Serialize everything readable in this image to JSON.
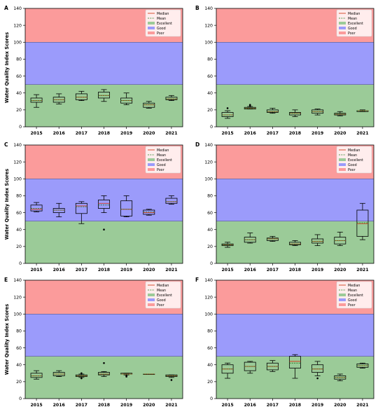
{
  "figure": {
    "legend_labels": [
      "Median",
      "Mean",
      "Excellent",
      "Good",
      "Poor"
    ],
    "colors": {
      "excellent": "#9bcb98",
      "good": "#9b9bfb",
      "poor": "#fb9b9b",
      "box_edge": "#000000",
      "median": "#d04020",
      "mean": "#208020",
      "frame": "#000000"
    }
  },
  "chart_data": [
    {
      "type": "box",
      "panel_label": "A",
      "ylabel": "Water Quality Index Scores",
      "ylim": [
        0,
        140
      ],
      "yticks": [
        0,
        20,
        40,
        60,
        80,
        100,
        120,
        140
      ],
      "bands": [
        {
          "name": "Excellent",
          "from": 0,
          "to": 50
        },
        {
          "name": "Good",
          "from": 50,
          "to": 100
        },
        {
          "name": "Poor",
          "from": 100,
          "to": 140
        }
      ],
      "legend": "top-right",
      "categories": [
        "2015",
        "2016",
        "2017",
        "2018",
        "2019",
        "2020",
        "2021"
      ],
      "boxes": [
        {
          "whislo": 23,
          "q1": 29,
          "med": 31,
          "mean": 31,
          "q3": 34,
          "whishi": 38,
          "fliers": []
        },
        {
          "whislo": 27,
          "q1": 29,
          "med": 32,
          "mean": 32,
          "q3": 35,
          "whishi": 39,
          "fliers": []
        },
        {
          "whislo": 31,
          "q1": 32,
          "med": 35,
          "mean": 35,
          "q3": 39,
          "whishi": 42,
          "fliers": []
        },
        {
          "whislo": 30,
          "q1": 34,
          "med": 37,
          "mean": 37,
          "q3": 41,
          "whishi": 44,
          "fliers": []
        },
        {
          "whislo": 26,
          "q1": 28,
          "med": 31,
          "mean": 31,
          "q3": 34,
          "whishi": 40,
          "fliers": []
        },
        {
          "whislo": 22,
          "q1": 23,
          "med": 26,
          "mean": 26,
          "q3": 28,
          "whishi": 30,
          "fliers": []
        },
        {
          "whislo": 31,
          "q1": 32,
          "med": 33,
          "mean": 33,
          "q3": 35,
          "whishi": 37,
          "fliers": []
        }
      ]
    },
    {
      "type": "box",
      "panel_label": "B",
      "ylabel": "",
      "ylim": [
        0,
        140
      ],
      "yticks": [
        0,
        20,
        40,
        60,
        80,
        100,
        120,
        140
      ],
      "bands": [
        {
          "name": "Excellent",
          "from": 0,
          "to": 50
        },
        {
          "name": "Good",
          "from": 50,
          "to": 100
        },
        {
          "name": "Poor",
          "from": 100,
          "to": 140
        }
      ],
      "legend": "top-right",
      "categories": [
        "2015",
        "2016",
        "2017",
        "2018",
        "2019",
        "2020",
        "2021"
      ],
      "boxes": [
        {
          "whislo": 10,
          "q1": 12,
          "med": 14,
          "mean": 14,
          "q3": 17,
          "whishi": 19,
          "fliers": [
            22
          ]
        },
        {
          "whislo": 21,
          "q1": 21,
          "med": 22,
          "mean": 22,
          "q3": 23,
          "whishi": 24,
          "fliers": [
            25,
            26
          ]
        },
        {
          "whislo": 16,
          "q1": 17,
          "med": 18,
          "mean": 18,
          "q3": 20,
          "whishi": 22,
          "fliers": []
        },
        {
          "whislo": 12,
          "q1": 14,
          "med": 16,
          "mean": 16,
          "q3": 17,
          "whishi": 20,
          "fliers": []
        },
        {
          "whislo": 14,
          "q1": 16,
          "med": 18,
          "mean": 18,
          "q3": 20,
          "whishi": 21,
          "fliers": []
        },
        {
          "whislo": 13,
          "q1": 14,
          "med": 15,
          "mean": 15,
          "q3": 16,
          "whishi": 18,
          "fliers": []
        },
        {
          "whislo": 18,
          "q1": 18,
          "med": 19,
          "mean": 19,
          "q3": 19,
          "whishi": 20,
          "fliers": []
        }
      ]
    },
    {
      "type": "box",
      "panel_label": "C",
      "ylabel": "Water Quality Index Scores",
      "ylim": [
        0,
        140
      ],
      "yticks": [
        0,
        20,
        40,
        60,
        80,
        100,
        120,
        140
      ],
      "bands": [
        {
          "name": "Excellent",
          "from": 0,
          "to": 50
        },
        {
          "name": "Good",
          "from": 50,
          "to": 100
        },
        {
          "name": "Poor",
          "from": 100,
          "to": 140
        }
      ],
      "legend": "top-right",
      "categories": [
        "2015",
        "2016",
        "2017",
        "2018",
        "2019",
        "2020",
        "2021"
      ],
      "boxes": [
        {
          "whislo": 61,
          "q1": 62,
          "med": 64,
          "mean": 65,
          "q3": 69,
          "whishi": 72,
          "fliers": []
        },
        {
          "whislo": 55,
          "q1": 60,
          "med": 63,
          "mean": 63,
          "q3": 65,
          "whishi": 71,
          "fliers": []
        },
        {
          "whislo": 47,
          "q1": 59,
          "med": 68,
          "mean": 67,
          "q3": 71,
          "whishi": 73,
          "fliers": []
        },
        {
          "whislo": 60,
          "q1": 65,
          "med": 71,
          "mean": 69,
          "q3": 75,
          "whishi": 80,
          "fliers": [
            40
          ]
        },
        {
          "whislo": 55,
          "q1": 56,
          "med": 64,
          "mean": 64,
          "q3": 74,
          "whishi": 80,
          "fliers": []
        },
        {
          "whislo": 57,
          "q1": 58,
          "med": 60,
          "mean": 61,
          "q3": 63,
          "whishi": 64,
          "fliers": []
        },
        {
          "whislo": 70,
          "q1": 71,
          "med": 73,
          "mean": 73,
          "q3": 77,
          "whishi": 80,
          "fliers": []
        }
      ]
    },
    {
      "type": "box",
      "panel_label": "D",
      "ylabel": "",
      "ylim": [
        0,
        140
      ],
      "yticks": [
        0,
        20,
        40,
        60,
        80,
        100,
        120,
        140
      ],
      "bands": [
        {
          "name": "Excellent",
          "from": 0,
          "to": 50
        },
        {
          "name": "Good",
          "from": 50,
          "to": 100
        },
        {
          "name": "Poor",
          "from": 100,
          "to": 140
        }
      ],
      "legend": "top-right",
      "categories": [
        "2015",
        "2016",
        "2017",
        "2018",
        "2019",
        "2020",
        "2021"
      ],
      "boxes": [
        {
          "whislo": 19,
          "q1": 21,
          "med": 22,
          "mean": 22,
          "q3": 23,
          "whishi": 25,
          "fliers": []
        },
        {
          "whislo": 24,
          "q1": 25,
          "med": 28,
          "mean": 28,
          "q3": 31,
          "whishi": 36,
          "fliers": []
        },
        {
          "whislo": 26,
          "q1": 27,
          "med": 29,
          "mean": 29,
          "q3": 30,
          "whishi": 32,
          "fliers": []
        },
        {
          "whislo": 21,
          "q1": 22,
          "med": 23,
          "mean": 23,
          "q3": 25,
          "whishi": 27,
          "fliers": []
        },
        {
          "whislo": 21,
          "q1": 24,
          "med": 26,
          "mean": 26,
          "q3": 29,
          "whishi": 34,
          "fliers": []
        },
        {
          "whislo": 21,
          "q1": 23,
          "med": 27,
          "mean": 27,
          "q3": 31,
          "whishi": 37,
          "fliers": []
        },
        {
          "whislo": 28,
          "q1": 32,
          "med": 47,
          "mean": 48,
          "q3": 63,
          "whishi": 71,
          "fliers": []
        }
      ]
    },
    {
      "type": "box",
      "panel_label": "E",
      "ylabel": "Water Quality Index Scores",
      "ylim": [
        0,
        140
      ],
      "yticks": [
        0,
        20,
        40,
        60,
        80,
        100,
        120,
        140
      ],
      "bands": [
        {
          "name": "Excellent",
          "from": 0,
          "to": 50
        },
        {
          "name": "Good",
          "from": 50,
          "to": 100
        },
        {
          "name": "Poor",
          "from": 100,
          "to": 140
        }
      ],
      "legend": "top-right",
      "categories": [
        "2015",
        "2016",
        "2017",
        "2018",
        "2019",
        "2020",
        "2021"
      ],
      "boxes": [
        {
          "whislo": 23,
          "q1": 25,
          "med": 27,
          "mean": 27,
          "q3": 30,
          "whishi": 33,
          "fliers": []
        },
        {
          "whislo": 26,
          "q1": 27,
          "med": 29,
          "mean": 29,
          "q3": 31,
          "whishi": 33,
          "fliers": []
        },
        {
          "whislo": 25,
          "q1": 26,
          "med": 27,
          "mean": 27,
          "q3": 28,
          "whishi": 29,
          "fliers": [
            24,
            30
          ]
        },
        {
          "whislo": 26,
          "q1": 28,
          "med": 29,
          "mean": 29,
          "q3": 31,
          "whishi": 32,
          "fliers": [
            42
          ]
        },
        {
          "whislo": 28,
          "q1": 29,
          "med": 29,
          "mean": 29,
          "q3": 30,
          "whishi": 30,
          "fliers": [
            26,
            27
          ]
        },
        {
          "whislo": 29,
          "q1": 29,
          "med": 29,
          "mean": 29,
          "q3": 29,
          "whishi": 29,
          "fliers": []
        },
        {
          "whislo": 25,
          "q1": 26,
          "med": 27,
          "mean": 27,
          "q3": 28,
          "whishi": 28,
          "fliers": [
            22
          ]
        }
      ]
    },
    {
      "type": "box",
      "panel_label": "F",
      "ylabel": "",
      "ylim": [
        0,
        140
      ],
      "yticks": [
        0,
        20,
        40,
        60,
        80,
        100,
        120,
        140
      ],
      "bands": [
        {
          "name": "Excellent",
          "from": 0,
          "to": 50
        },
        {
          "name": "Good",
          "from": 50,
          "to": 100
        },
        {
          "name": "Poor",
          "from": 100,
          "to": 140
        }
      ],
      "legend": "top-right",
      "categories": [
        "2015",
        "2016",
        "2017",
        "2018",
        "2019",
        "2020",
        "2021"
      ],
      "boxes": [
        {
          "whislo": 24,
          "q1": 30,
          "med": 35,
          "mean": 35,
          "q3": 40,
          "whishi": 42,
          "fliers": []
        },
        {
          "whislo": 30,
          "q1": 33,
          "med": 38,
          "mean": 38,
          "q3": 43,
          "whishi": 44,
          "fliers": []
        },
        {
          "whislo": 32,
          "q1": 34,
          "med": 38,
          "mean": 38,
          "q3": 42,
          "whishi": 45,
          "fliers": []
        },
        {
          "whislo": 24,
          "q1": 36,
          "med": 44,
          "mean": 42,
          "q3": 50,
          "whishi": 52,
          "fliers": []
        },
        {
          "whislo": 27,
          "q1": 31,
          "med": 35,
          "mean": 35,
          "q3": 40,
          "whishi": 44,
          "fliers": [
            24
          ]
        },
        {
          "whislo": 21,
          "q1": 23,
          "med": 25,
          "mean": 25,
          "q3": 27,
          "whishi": 29,
          "fliers": []
        },
        {
          "whislo": 36,
          "q1": 37,
          "med": 39,
          "mean": 39,
          "q3": 41,
          "whishi": 42,
          "fliers": []
        }
      ]
    }
  ]
}
